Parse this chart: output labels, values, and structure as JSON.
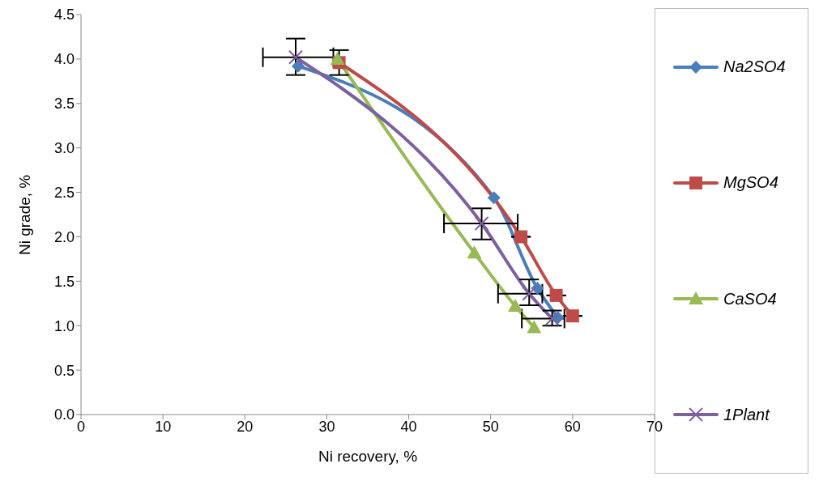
{
  "chart_data": {
    "type": "line",
    "xlabel": "Ni recovery, %",
    "ylabel": "Ni grade, %",
    "xlim": [
      0,
      70
    ],
    "xticks": [
      0,
      10,
      20,
      30,
      40,
      50,
      60,
      70
    ],
    "ylim": [
      0,
      4.5
    ],
    "yticks": [
      {
        "value": 0,
        "label": "0.0"
      },
      {
        "value": 0.5,
        "label": "0.5"
      },
      {
        "value": 1,
        "label": "1.0"
      },
      {
        "value": 1.5,
        "label": "1.5"
      },
      {
        "value": 2,
        "label": "2.0"
      },
      {
        "value": 2.5,
        "label": "2.5"
      },
      {
        "value": 3,
        "label": "3.0"
      },
      {
        "value": 3.5,
        "label": "3.5"
      },
      {
        "value": 4,
        "label": "4.0"
      },
      {
        "value": 4.5,
        "label": "4.5"
      }
    ],
    "grid": false,
    "legend": "right",
    "series": [
      {
        "name": "Na2SO4",
        "color": "#4a7ebb",
        "marker": "diamond",
        "x": [
          26.5,
          50.4,
          55.7,
          58.2
        ],
        "values": [
          3.92,
          2.44,
          1.42,
          1.09
        ]
      },
      {
        "name": "MgSO4",
        "color": "#be4b48",
        "marker": "square",
        "x": [
          31.5,
          53.7,
          58,
          60
        ],
        "values": [
          3.96,
          2.0,
          1.34,
          1.11
        ],
        "errors": [
          [
            3.82,
            4.1
          ],
          null,
          null,
          null
        ]
      },
      {
        "name": "CaSO4",
        "color": "#98b954",
        "marker": "triangle",
        "x": [
          31.3,
          48,
          53,
          55.3
        ],
        "values": [
          4.0,
          1.82,
          1.22,
          0.98
        ]
      },
      {
        "name": "1Plant",
        "color": "#7d60a0",
        "marker": "cross",
        "x": [
          26.2,
          48.9,
          54.7,
          57.5
        ],
        "values": [
          4.02,
          2.15,
          1.36,
          1.08
        ],
        "errors": [
          [
            3.82,
            4.23
          ],
          [
            1.97,
            2.32
          ],
          [
            1.23,
            1.52
          ],
          [
            1.0,
            1.17
          ]
        ],
        "xerrors": [
          [
            22.2,
            30.8
          ],
          [
            44.3,
            53.3
          ],
          [
            50.9,
            56.3
          ],
          [
            53.8,
            59
          ]
        ]
      }
    ]
  }
}
